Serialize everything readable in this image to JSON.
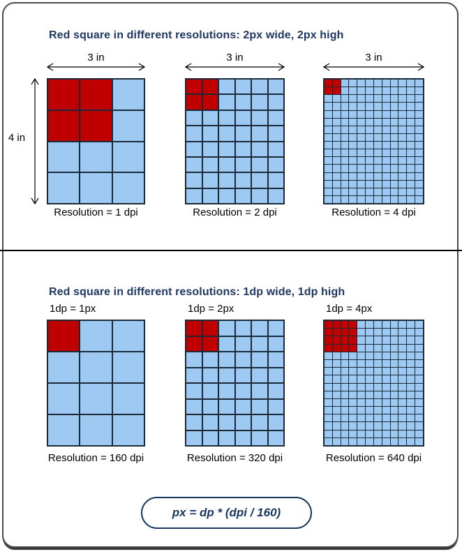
{
  "colors": {
    "red": "#C00000",
    "blue": "#9DC9F3",
    "gridline": "#1B2A38",
    "title": "#1F3864",
    "accent": "#17375E",
    "text": "#111111",
    "frame": "#4A4A4A"
  },
  "top_panel": {
    "title": "Red square in different resolutions: 2px wide, 2px high",
    "height_label": "4 in",
    "grids": [
      {
        "width_label": "3 in",
        "cols": 3,
        "rows": 4,
        "red_cols": 2,
        "red_rows": 2,
        "caption": "Resolution = 1 dpi"
      },
      {
        "width_label": "3 in",
        "cols": 6,
        "rows": 8,
        "red_cols": 2,
        "red_rows": 2,
        "caption": "Resolution = 2 dpi"
      },
      {
        "width_label": "3 in",
        "cols": 12,
        "rows": 16,
        "red_cols": 2,
        "red_rows": 2,
        "caption": "Resolution = 4 dpi"
      }
    ]
  },
  "bottom_panel": {
    "title": "Red square in different resolutions: 1dp wide, 1dp high",
    "grids": [
      {
        "pixel_label": "1dp = 1px",
        "cols": 3,
        "rows": 4,
        "red_cols": 1,
        "red_rows": 1,
        "caption": "Resolution = 160 dpi"
      },
      {
        "pixel_label": "1dp = 2px",
        "cols": 6,
        "rows": 8,
        "red_cols": 2,
        "red_rows": 2,
        "caption": "Resolution = 320 dpi"
      },
      {
        "pixel_label": "1dp = 4px",
        "cols": 12,
        "rows": 16,
        "red_cols": 4,
        "red_rows": 4,
        "caption": "Resolution = 640 dpi"
      }
    ]
  },
  "formula": {
    "text": "px = dp * (dpi / 160)"
  }
}
